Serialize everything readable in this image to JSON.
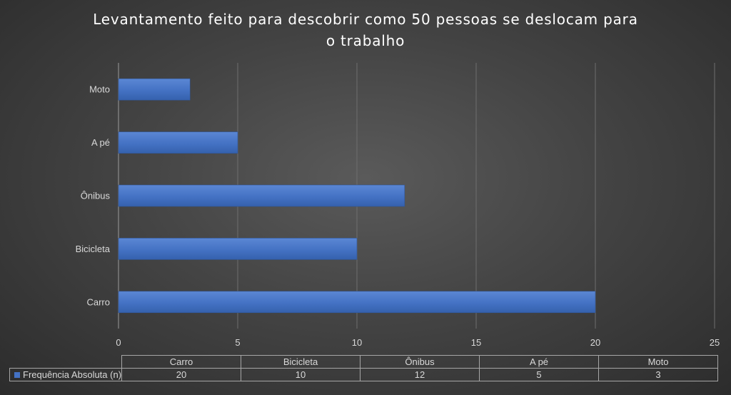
{
  "chart_data": {
    "type": "bar",
    "orientation": "horizontal",
    "title_lines": [
      "Levantamento feito para descobrir como 50 pessoas se deslocam para",
      "o trabalho"
    ],
    "categories": [
      "Carro",
      "Bicicleta",
      "Ônibus",
      "A pé",
      "Moto"
    ],
    "series": [
      {
        "name": "Frequência Absoluta (n)",
        "values": [
          20,
          10,
          12,
          5,
          3
        ],
        "color": "#4472c4"
      }
    ],
    "xlim": [
      0,
      25
    ],
    "x_ticks": [
      "0",
      "5",
      "10",
      "15",
      "20",
      "25"
    ],
    "grid": "vertical",
    "data_table": true,
    "background": "dark-radial-gradient"
  }
}
